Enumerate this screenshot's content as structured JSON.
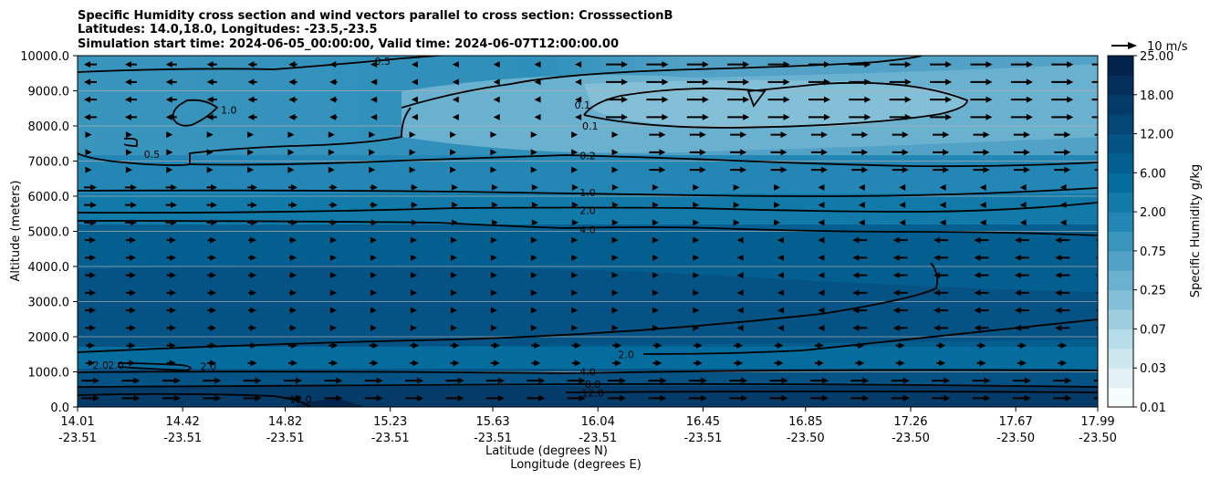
{
  "chart_data": {
    "type": "contour",
    "title_lines": [
      "Specific Humidity cross section and wind vectors parallel to cross section: CrosssectionB",
      "Latitudes: 14.0,18.0, Longitudes: -23.5,-23.5",
      "Simulation start time: 2024-06-05_00:00:00, Valid time: 2024-06-07T12:00:00.00"
    ],
    "xlabel_lat": "Latitude (degrees N)",
    "xlabel_lon": "Longitude (degrees E)",
    "ylabel": "Altitude (meters)",
    "colorbar_label": "Specific Humidity g/kg",
    "quiver_key_label": "10 m/s",
    "x_ticks": [
      {
        "lat": "14.01",
        "lon": "-23.51"
      },
      {
        "lat": "14.42",
        "lon": "-23.51"
      },
      {
        "lat": "14.82",
        "lon": "-23.51"
      },
      {
        "lat": "15.23",
        "lon": "-23.51"
      },
      {
        "lat": "15.63",
        "lon": "-23.51"
      },
      {
        "lat": "16.04",
        "lon": "-23.51"
      },
      {
        "lat": "16.45",
        "lon": "-23.51"
      },
      {
        "lat": "16.85",
        "lon": "-23.50"
      },
      {
        "lat": "17.26",
        "lon": "-23.50"
      },
      {
        "lat": "17.67",
        "lon": "-23.50"
      },
      {
        "lat": "17.99",
        "lon": "-23.50"
      }
    ],
    "y_ticks": [
      "0.0",
      "1000.0",
      "2000.0",
      "3000.0",
      "4000.0",
      "5000.0",
      "6000.0",
      "7000.0",
      "8000.0",
      "9000.0",
      "10000.0"
    ],
    "ylim": [
      0,
      10000
    ],
    "xlim": [
      14.01,
      17.99
    ],
    "colorbar_ticks": [
      "0.01",
      "0.03",
      "0.07",
      "0.25",
      "0.75",
      "2.00",
      "6.00",
      "12.00",
      "18.00",
      "25.00"
    ],
    "colorbar_levels": [
      0.01,
      0.02,
      0.03,
      0.05,
      0.07,
      0.1,
      0.25,
      0.5,
      0.75,
      1.0,
      2.0,
      4.0,
      6.0,
      8.0,
      12.0,
      15.0,
      18.0,
      20.0,
      25.0
    ],
    "colorbar_colors": [
      "#f7fcfd",
      "#e3f1f5",
      "#cfe7ef",
      "#b7dce9",
      "#9ecde0",
      "#84bfd8",
      "#6ab0cf",
      "#51a2c6",
      "#3a95bd",
      "#2486b4",
      "#117aa9",
      "#056c9e",
      "#045f91",
      "#045384",
      "#044676",
      "#043b68",
      "#032f5a",
      "#02234b"
    ],
    "contour_labels": [
      {
        "text": "0.1",
        "lat": 15.98,
        "alt": 8600
      },
      {
        "text": "0.1",
        "lat": 16.01,
        "alt": 8000
      },
      {
        "text": "0.2",
        "lat": 16.0,
        "alt": 7150
      },
      {
        "text": "1.0",
        "lat": 16.0,
        "alt": 6100
      },
      {
        "text": "2.0",
        "lat": 16.0,
        "alt": 5600
      },
      {
        "text": "4.0",
        "lat": 16.0,
        "alt": 5050
      },
      {
        "text": "4.0",
        "lat": 16.0,
        "alt": 1000
      },
      {
        "text": "8.0",
        "lat": 16.02,
        "alt": 650
      },
      {
        "text": "12.0",
        "lat": 16.02,
        "alt": 400
      },
      {
        "text": "2.0",
        "lat": 16.15,
        "alt": 1500
      },
      {
        "text": "1.0",
        "lat": 14.6,
        "alt": 8450
      },
      {
        "text": "0.5",
        "lat": 14.3,
        "alt": 7200
      },
      {
        "text": "0.5",
        "lat": 15.2,
        "alt": 9850
      },
      {
        "text": "2.0",
        "lat": 14.1,
        "alt": 1200
      },
      {
        "text": "2.0",
        "lat": 14.16,
        "alt": 1200
      },
      {
        "text": "2.0",
        "lat": 14.52,
        "alt": 1150
      },
      {
        "text": "12.0",
        "lat": 14.88,
        "alt": 220
      }
    ]
  }
}
